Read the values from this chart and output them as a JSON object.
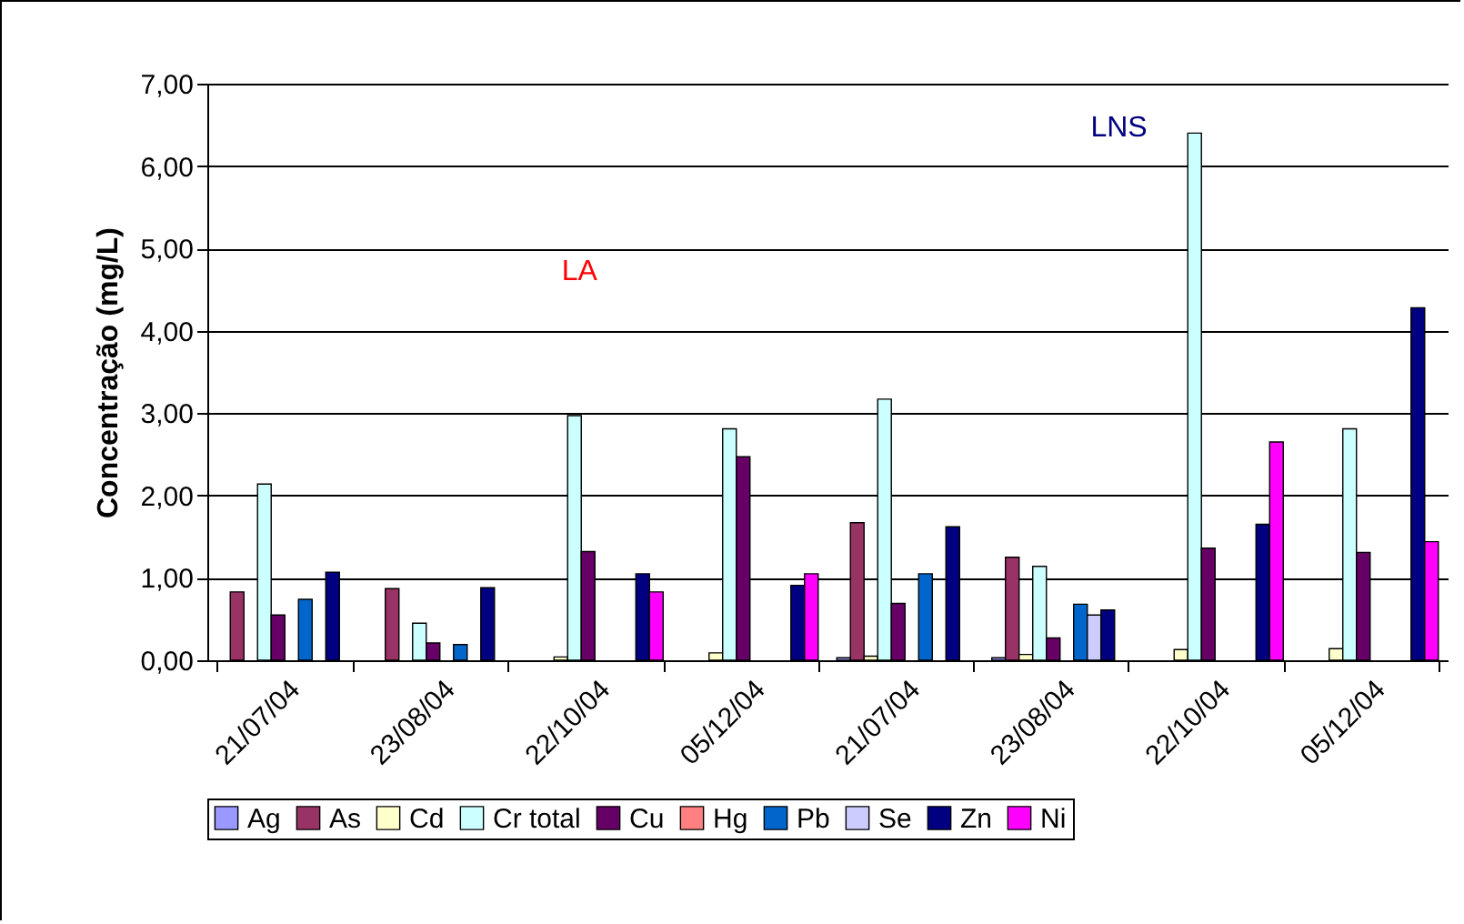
{
  "chart_data": {
    "type": "bar",
    "ylabel": "Concentração (mg/L)",
    "categories": [
      "21/07/04",
      "23/08/04",
      "22/10/04",
      "05/12/04",
      "21/07/04",
      "23/08/04",
      "22/10/04",
      "05/12/04"
    ],
    "series": [
      {
        "name": "Ag",
        "color": "#9999ff",
        "values": [
          null,
          null,
          null,
          null,
          0.03,
          0.03,
          null,
          null
        ]
      },
      {
        "name": "As",
        "color": "#993366",
        "values": [
          0.83,
          0.87,
          null,
          null,
          1.67,
          1.25,
          null,
          null
        ]
      },
      {
        "name": "Cd",
        "color": "#ffffcc",
        "values": [
          null,
          null,
          0.04,
          0.09,
          0.05,
          0.07,
          0.13,
          0.14
        ]
      },
      {
        "name": "Cr total",
        "color": "#ccffff",
        "values": [
          2.14,
          0.45,
          2.97,
          2.81,
          3.17,
          1.14,
          6.4,
          2.81
        ]
      },
      {
        "name": "Cu",
        "color": "#660066",
        "values": [
          0.55,
          0.21,
          1.32,
          2.47,
          0.69,
          0.27,
          1.36,
          1.31
        ]
      },
      {
        "name": "Hg",
        "color": "#ff8080",
        "values": [
          null,
          null,
          null,
          null,
          null,
          null,
          null,
          null
        ]
      },
      {
        "name": "Pb",
        "color": "#0066cc",
        "values": [
          0.74,
          0.19,
          null,
          null,
          1.05,
          0.68,
          null,
          null
        ]
      },
      {
        "name": "Se",
        "color": "#ccccff",
        "values": [
          null,
          null,
          null,
          null,
          null,
          0.55,
          null,
          null
        ]
      },
      {
        "name": "Zn",
        "color": "#000080",
        "values": [
          1.07,
          0.88,
          1.05,
          0.91,
          1.62,
          0.61,
          1.65,
          4.28
        ]
      },
      {
        "name": "Ni",
        "color": "#ff00ff",
        "values": [
          null,
          null,
          0.83,
          1.05,
          null,
          null,
          2.65,
          1.44
        ]
      }
    ],
    "ylim": [
      0,
      7
    ],
    "yticks": [
      {
        "value": 0,
        "label": "0,00"
      },
      {
        "value": 1,
        "label": "1,00"
      },
      {
        "value": 2,
        "label": "2,00"
      },
      {
        "value": 3,
        "label": "3,00"
      },
      {
        "value": 4,
        "label": "4,00"
      },
      {
        "value": 5,
        "label": "5,00"
      },
      {
        "value": 6,
        "label": "6,00"
      },
      {
        "value": 7,
        "label": "7,00"
      }
    ],
    "annotations": [
      "LA",
      "LNS"
    ],
    "grid": "y",
    "legend": "bottom"
  }
}
